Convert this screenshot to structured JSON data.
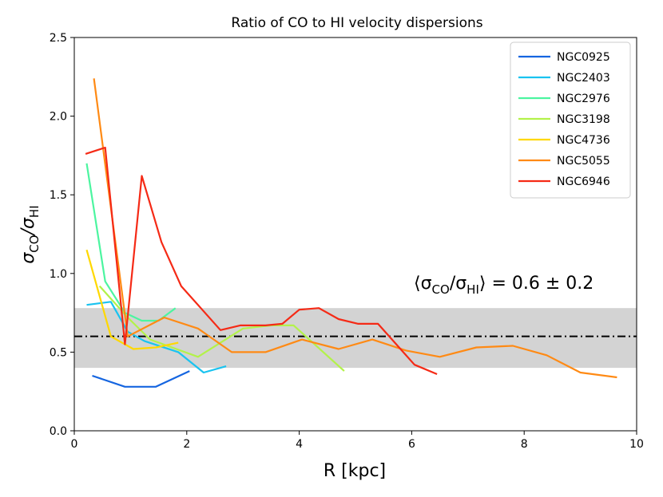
{
  "chart_data": {
    "type": "line",
    "title": "Ratio of CO to HI velocity dispersions",
    "xlabel": "R [kpc]",
    "ylabel": "σCO/σHI",
    "xlim": [
      0,
      10
    ],
    "ylim": [
      0,
      2.5
    ],
    "xticks": [
      0,
      2,
      4,
      6,
      8,
      10
    ],
    "xtick_labels": [
      "0",
      "2",
      "4",
      "6",
      "8",
      "10"
    ],
    "yticks": [
      0,
      0.5,
      1.0,
      1.5,
      2.0,
      2.5
    ],
    "ytick_labels": [
      "0.0",
      "0.5",
      "1.0",
      "1.5",
      "2.0",
      "2.5"
    ],
    "legend_position": "top-right",
    "band": {
      "y_low": 0.4,
      "y_high": 0.78,
      "color": "#d3d3d3"
    },
    "mean_line": {
      "y": 0.6,
      "style": "dash-dot",
      "color": "#000000"
    },
    "annotation": {
      "prefix": "⟨σ",
      "sub1": "CO",
      "mid": "/σ",
      "sub2": "HI",
      "suffix": "⟩ = 0.6 ± 0.2"
    },
    "series": [
      {
        "name": "NGC0925",
        "color": "#1565e0",
        "x": [
          0.32,
          0.9,
          1.45,
          2.05
        ],
        "y": [
          0.35,
          0.28,
          0.28,
          0.38
        ]
      },
      {
        "name": "NGC2403",
        "color": "#19c3f0",
        "x": [
          0.22,
          0.65,
          0.95,
          1.25,
          1.85,
          2.3,
          2.7
        ],
        "y": [
          0.8,
          0.82,
          0.63,
          0.57,
          0.5,
          0.37,
          0.41
        ]
      },
      {
        "name": "NGC2976",
        "color": "#4cf5a0",
        "x": [
          0.22,
          0.55,
          0.9,
          1.2,
          1.5,
          1.8
        ],
        "y": [
          1.7,
          0.95,
          0.75,
          0.7,
          0.7,
          0.78
        ]
      },
      {
        "name": "NGC3198",
        "color": "#b3f24a",
        "x": [
          0.45,
          0.95,
          1.35,
          2.2,
          3.0,
          3.5,
          3.9,
          4.8
        ],
        "y": [
          0.92,
          0.72,
          0.58,
          0.47,
          0.65,
          0.67,
          0.67,
          0.38
        ]
      },
      {
        "name": "NGC4736",
        "color": "#ffd800",
        "x": [
          0.22,
          0.65,
          1.05,
          1.45,
          1.85
        ],
        "y": [
          1.15,
          0.6,
          0.52,
          0.53,
          0.56
        ]
      },
      {
        "name": "NGC5055",
        "color": "#ff8a14",
        "x": [
          0.35,
          0.95,
          1.6,
          2.2,
          2.8,
          3.4,
          4.05,
          4.7,
          5.3,
          5.9,
          6.5,
          7.15,
          7.8,
          8.4,
          9.0,
          9.65
        ],
        "y": [
          2.24,
          0.6,
          0.72,
          0.65,
          0.5,
          0.5,
          0.58,
          0.52,
          0.58,
          0.51,
          0.47,
          0.53,
          0.54,
          0.48,
          0.37,
          0.34
        ]
      },
      {
        "name": "NGC6946",
        "color": "#f52a16",
        "x": [
          0.2,
          0.55,
          0.9,
          1.2,
          1.55,
          1.9,
          2.25,
          2.6,
          2.95,
          3.4,
          3.7,
          4.0,
          4.35,
          4.7,
          5.05,
          5.4,
          6.05,
          6.45
        ],
        "y": [
          1.76,
          1.8,
          0.55,
          1.62,
          1.2,
          0.92,
          0.78,
          0.64,
          0.67,
          0.67,
          0.68,
          0.77,
          0.78,
          0.71,
          0.68,
          0.68,
          0.42,
          0.36
        ]
      }
    ]
  }
}
